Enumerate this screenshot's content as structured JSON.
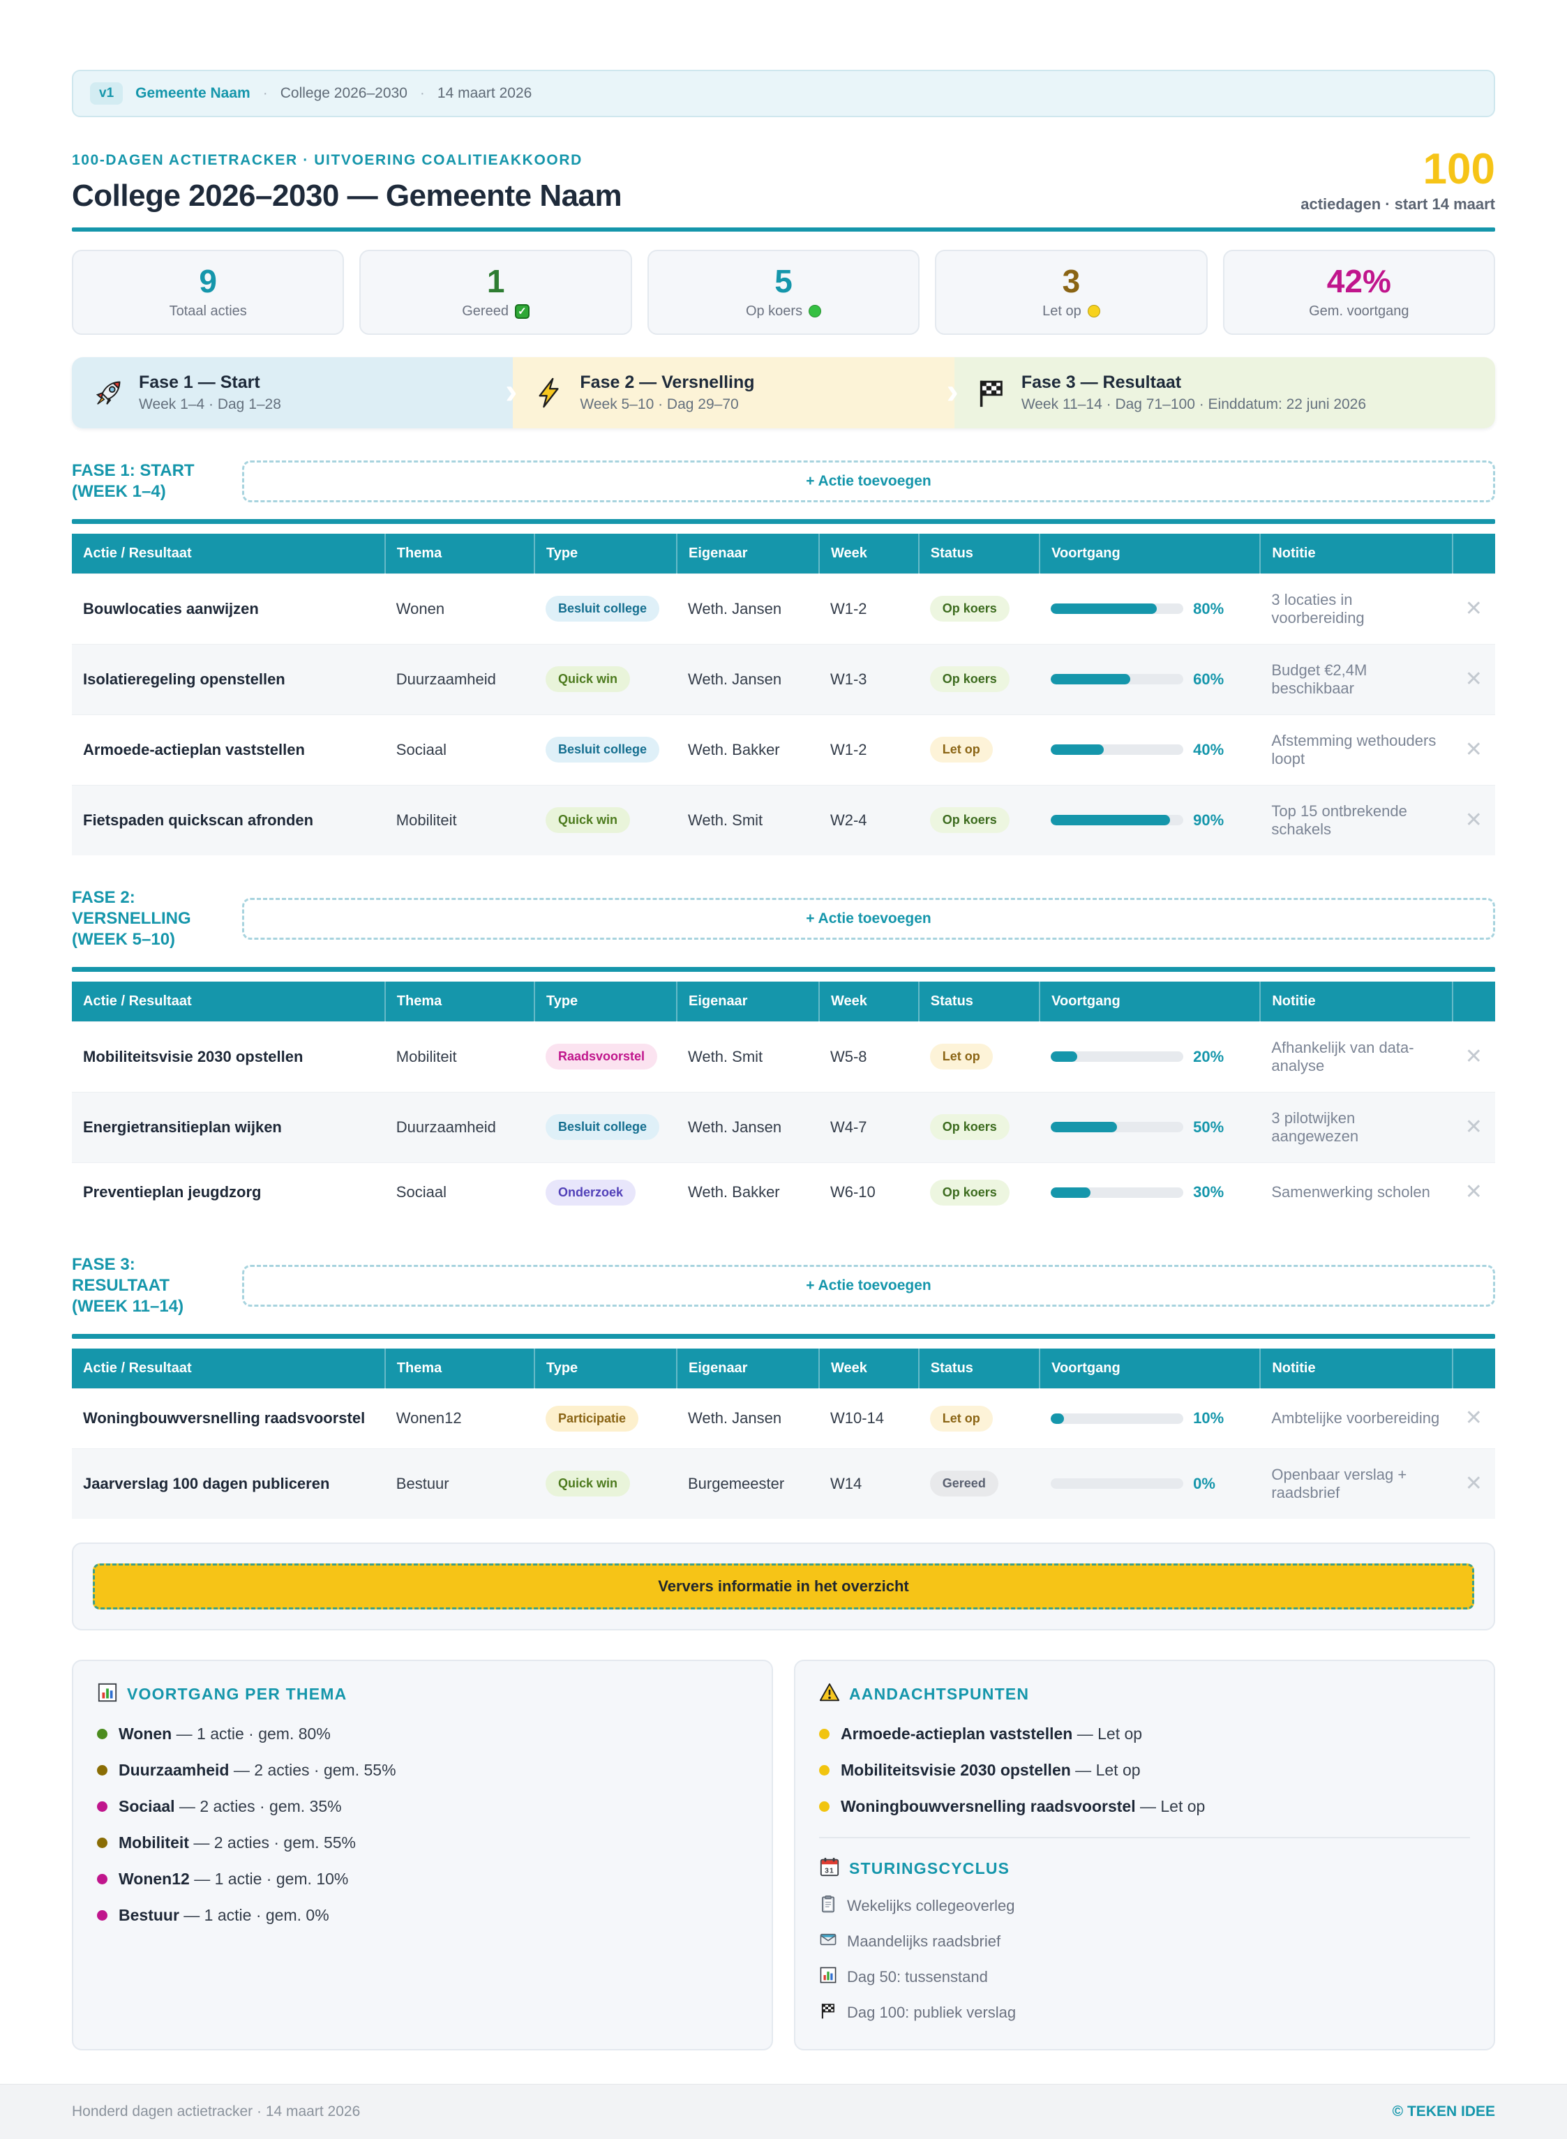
{
  "palette": {
    "teal": "#1596ab",
    "navy": "#1e2a3a",
    "text": "#2a3442",
    "muted": "#6b7280",
    "yellow": "#f6c417",
    "gold": "#8a6414",
    "magenta": "#c0158c",
    "green": "#2e7d32",
    "card-bg": "#f5f7fa",
    "card-border": "#e4e9ef",
    "row-alt": "#f5f7f9",
    "track": "#e7eaee",
    "meta-bg": "#e9f5f9",
    "meta-border": "#cfe7ee",
    "badge-bg": "#d3ecf2",
    "phase1-bg": "#ddeef5",
    "phase2-bg": "#fcf3d7",
    "phase3-bg": "#edf4e0",
    "pill-besluit-bg": "#dff0f8",
    "pill-besluit-fg": "#146e8f",
    "pill-quickwin-bg": "#e9f4da",
    "pill-quickwin-fg": "#4c7a1d",
    "pill-raads-bg": "#fbe3f0",
    "pill-raads-fg": "#c0158c",
    "pill-onderzoek-bg": "#e8e6fb",
    "pill-onderzoek-fg": "#5140b8",
    "pill-participatie-bg": "#fdf0cd",
    "pill-participatie-fg": "#8a6414",
    "status-opkoers-bg": "#edf6e0",
    "status-opkoers-fg": "#3c6b1e",
    "status-letop-bg": "#fdf3d8",
    "status-letop-fg": "#8a6414",
    "status-gereed-bg": "#e8e9eb",
    "status-gereed-fg": "#596070"
  },
  "meta_bar": {
    "version_badge": "v1",
    "municipality": "Gemeente Naam",
    "sep": "·",
    "college": "College 2026–2030",
    "date": "14 maart 2026"
  },
  "header": {
    "kicker": "100-DAGEN ACTIETRACKER · UITVOERING COALITIEAKKOORD",
    "title": "College 2026–2030 — Gemeente Naam",
    "days_number": "100",
    "days_label": "actiedagen · start 14 maart"
  },
  "stats": [
    {
      "value": "9",
      "label": "Totaal acties",
      "color_key": "teal",
      "indicator": "none"
    },
    {
      "value": "1",
      "label": "Gereed",
      "color_key": "green",
      "indicator": "check",
      "indicator_color": "#2fa836"
    },
    {
      "value": "5",
      "label": "Op koers",
      "color_key": "teal",
      "indicator": "dot",
      "indicator_color": "#35c042"
    },
    {
      "value": "3",
      "label": "Let op",
      "color_key": "gold",
      "indicator": "dot",
      "indicator_color": "#f7d21d"
    },
    {
      "value": "42%",
      "label": "Gem. voortgang",
      "color_key": "magenta",
      "indicator": "none"
    }
  ],
  "phases": [
    {
      "name": "Fase 1 — Start",
      "detail": "Week 1–4 · Dag 1–28"
    },
    {
      "name": "Fase 2 — Versnelling",
      "detail": "Week 5–10 · Dag 29–70"
    },
    {
      "name": "Fase 3 — Resultaat",
      "detail": "Week 11–14 · Dag 71–100 · Einddatum: 22 juni 2026"
    }
  ],
  "labels": {
    "add_action": "+ Actie toevoegen",
    "refresh": "Ververs informatie in het overzicht"
  },
  "table": {
    "headers": [
      "Actie / Resultaat",
      "Thema",
      "Type",
      "Eigenaar",
      "Week",
      "Status",
      "Voortgang",
      "Notitie"
    ]
  },
  "sections": [
    {
      "title": "FASE 1: START (WEEK 1–4)",
      "rows": [
        {
          "action": "Bouwlocaties aanwijzen",
          "theme": "Wonen",
          "type": "Besluit college",
          "type_style": "besluit",
          "owner": "Weth. Jansen",
          "week": "W1-2",
          "status": "Op koers",
          "status_style": "opkoers",
          "progress": 80,
          "note": "3 locaties in voorbereiding"
        },
        {
          "action": "Isolatieregeling openstellen",
          "theme": "Duurzaamheid",
          "type": "Quick win",
          "type_style": "quickwin",
          "owner": "Weth. Jansen",
          "week": "W1-3",
          "status": "Op koers",
          "status_style": "opkoers",
          "progress": 60,
          "note": "Budget €2,4M beschikbaar"
        },
        {
          "action": "Armoede-actieplan vaststellen",
          "theme": "Sociaal",
          "type": "Besluit college",
          "type_style": "besluit",
          "owner": "Weth. Bakker",
          "week": "W1-2",
          "status": "Let op",
          "status_style": "letop",
          "progress": 40,
          "note": "Afstemming wethouders loopt"
        },
        {
          "action": "Fietspaden quickscan afronden",
          "theme": "Mobiliteit",
          "type": "Quick win",
          "type_style": "quickwin",
          "owner": "Weth. Smit",
          "week": "W2-4",
          "status": "Op koers",
          "status_style": "opkoers",
          "progress": 90,
          "note": "Top 15 ontbrekende schakels"
        }
      ]
    },
    {
      "title": "FASE 2: VERSNELLING (WEEK 5–10)",
      "rows": [
        {
          "action": "Mobiliteitsvisie 2030 opstellen",
          "theme": "Mobiliteit",
          "type": "Raadsvoorstel",
          "type_style": "raads",
          "owner": "Weth. Smit",
          "week": "W5-8",
          "status": "Let op",
          "status_style": "letop",
          "progress": 20,
          "note": "Afhankelijk van data-analyse"
        },
        {
          "action": "Energietransitieplan wijken",
          "theme": "Duurzaamheid",
          "type": "Besluit college",
          "type_style": "besluit",
          "owner": "Weth. Jansen",
          "week": "W4-7",
          "status": "Op koers",
          "status_style": "opkoers",
          "progress": 50,
          "note": "3 pilotwijken aangewezen"
        },
        {
          "action": "Preventieplan jeugdzorg",
          "theme": "Sociaal",
          "type": "Onderzoek",
          "type_style": "onderzoek",
          "owner": "Weth. Bakker",
          "week": "W6-10",
          "status": "Op koers",
          "status_style": "opkoers",
          "progress": 30,
          "note": "Samenwerking scholen"
        }
      ]
    },
    {
      "title": "FASE 3: RESULTAAT (WEEK 11–14)",
      "rows": [
        {
          "action": "Woningbouwversnelling raadsvoorstel",
          "theme": "Wonen12",
          "type": "Participatie",
          "type_style": "participatie",
          "owner": "Weth. Jansen",
          "week": "W10-14",
          "status": "Let op",
          "status_style": "letop",
          "progress": 10,
          "note": "Ambtelijke voorbereiding"
        },
        {
          "action": "Jaarverslag 100 dagen publiceren",
          "theme": "Bestuur",
          "type": "Quick win",
          "type_style": "quickwin",
          "owner": "Burgemeester",
          "week": "W14",
          "status": "Gereed",
          "status_style": "gereed",
          "progress": 0,
          "note": "Openbaar verslag + raadsbrief"
        }
      ]
    }
  ],
  "theme_panel": {
    "title": "VOORTGANG PER THEMA",
    "items": [
      {
        "name": "Wonen",
        "detail": "— 1 actie · gem. 80%",
        "dot": "#4c8c1e"
      },
      {
        "name": "Duurzaamheid",
        "detail": "— 2 acties · gem. 55%",
        "dot": "#8a6d05"
      },
      {
        "name": "Sociaal",
        "detail": "— 2 acties · gem. 35%",
        "dot": "#c0158c"
      },
      {
        "name": "Mobiliteit",
        "detail": "— 2 acties · gem. 55%",
        "dot": "#8a6d05"
      },
      {
        "name": "Wonen12",
        "detail": "— 1 actie · gem. 10%",
        "dot": "#c0158c"
      },
      {
        "name": "Bestuur",
        "detail": "— 1 actie · gem. 0%",
        "dot": "#c0158c"
      }
    ]
  },
  "attention_panel": {
    "title": "AANDACHTSPUNTEN",
    "dot": "#f1c40f",
    "items": [
      {
        "name": "Armoede-actieplan vaststellen",
        "detail": "— Let op"
      },
      {
        "name": "Mobiliteitsvisie 2030 opstellen",
        "detail": "— Let op"
      },
      {
        "name": "Woningbouwversnelling raadsvoorstel",
        "detail": "— Let op"
      }
    ]
  },
  "cycle_panel": {
    "title": "STURINGSCYCLUS",
    "items": [
      {
        "icon": "clipboard",
        "label": "Wekelijks collegeoverleg"
      },
      {
        "icon": "envelope",
        "label": "Maandelijks raadsbrief"
      },
      {
        "icon": "chart",
        "label": "Dag 50: tussenstand"
      },
      {
        "icon": "flag",
        "label": "Dag 100: publiek verslag"
      }
    ]
  },
  "footer": {
    "left": "Honderd dagen actietracker  ·  14 maart 2026",
    "right": "© TEKEN IDEE"
  }
}
